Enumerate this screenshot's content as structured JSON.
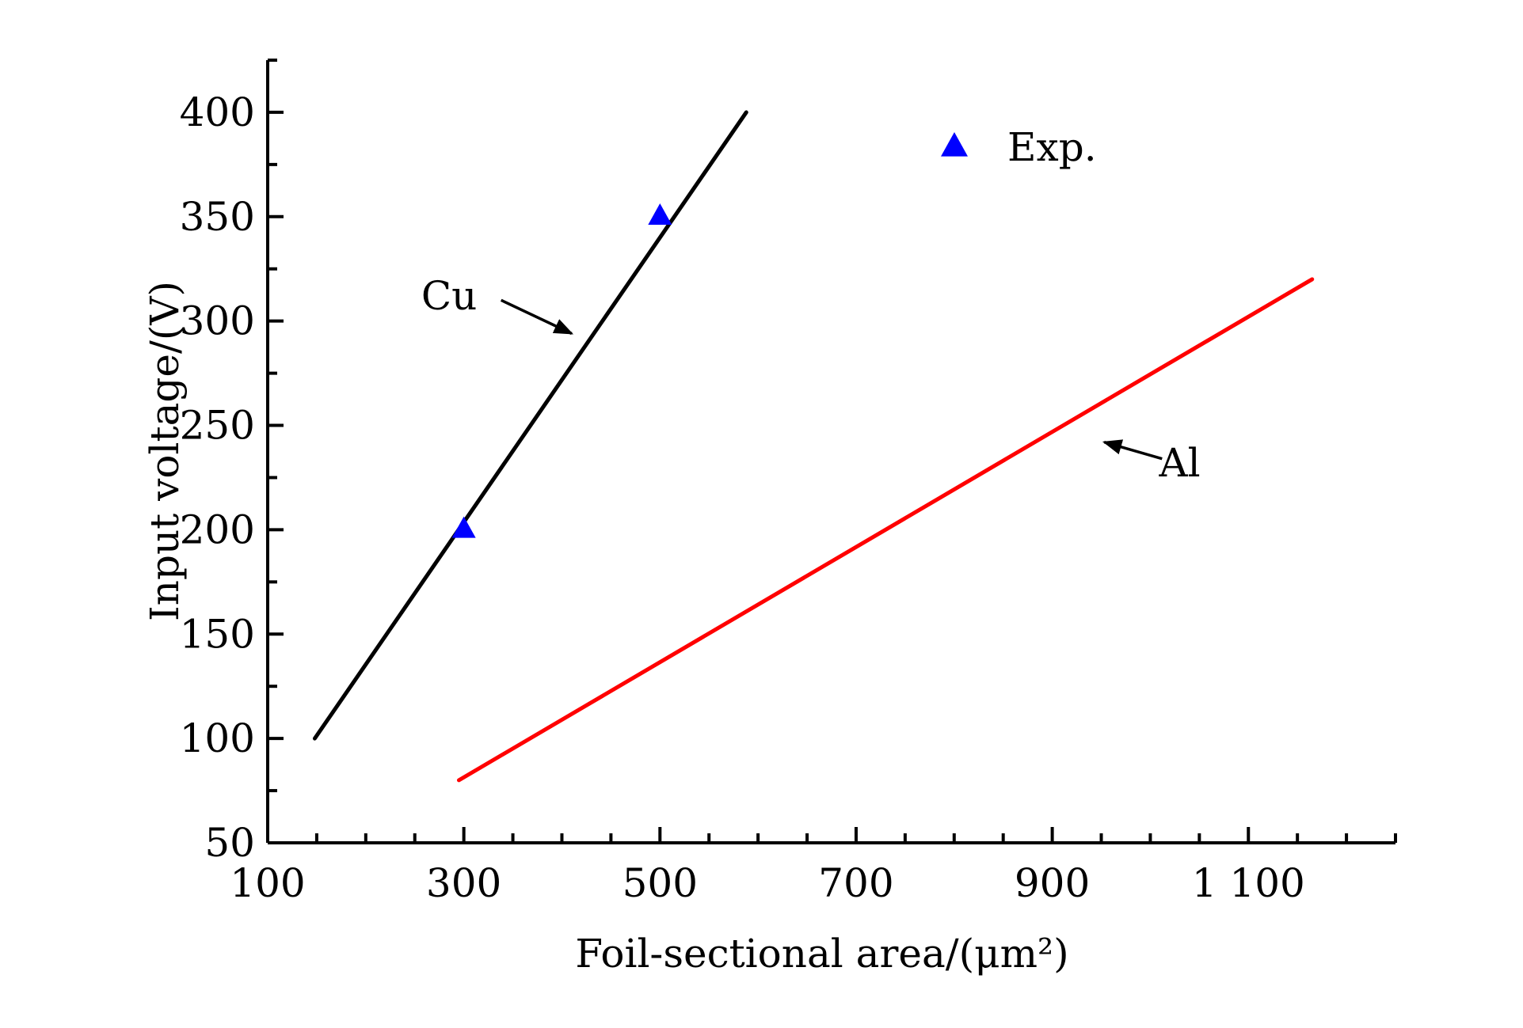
{
  "chart_data": {
    "type": "line",
    "xlabel": "Foil-sectional area/(μm²)",
    "ylabel": "Input voltage/(V)",
    "xlim": [
      100,
      1250
    ],
    "ylim": [
      50,
      425
    ],
    "x_ticks": [
      100,
      300,
      500,
      700,
      900,
      1100
    ],
    "x_tick_labels": [
      "100",
      "300",
      "500",
      "700",
      "900",
      "1 100"
    ],
    "x_minor_step": 50,
    "y_ticks": [
      50,
      100,
      150,
      200,
      250,
      300,
      350,
      400
    ],
    "y_tick_labels": [
      "50",
      "100",
      "150",
      "200",
      "250",
      "300",
      "350",
      "400"
    ],
    "y_minor_step": 25,
    "grid": false,
    "series": [
      {
        "name": "Cu",
        "kind": "line",
        "color": "#000000",
        "x": [
          148,
          588
        ],
        "y": [
          100,
          400
        ]
      },
      {
        "name": "Al",
        "kind": "line",
        "color": "#ff0000",
        "x": [
          295,
          1165
        ],
        "y": [
          80,
          320
        ]
      },
      {
        "name": "Exp.",
        "kind": "scatter",
        "marker": "triangle",
        "color": "#0000ff",
        "x": [
          300,
          500
        ],
        "y": [
          200,
          350
        ]
      }
    ],
    "legend": {
      "position": "top-right",
      "label": "Exp.",
      "marker_color": "#0000ff"
    },
    "annotations": [
      {
        "text": "Cu",
        "x": 285,
        "y": 312,
        "arrow_from": [
          338,
          310
        ],
        "arrow_to": [
          410,
          294
        ]
      },
      {
        "text": "Al",
        "x": 1030,
        "y": 232,
        "arrow_from": [
          1012,
          234
        ],
        "arrow_to": [
          953,
          242
        ]
      }
    ]
  }
}
